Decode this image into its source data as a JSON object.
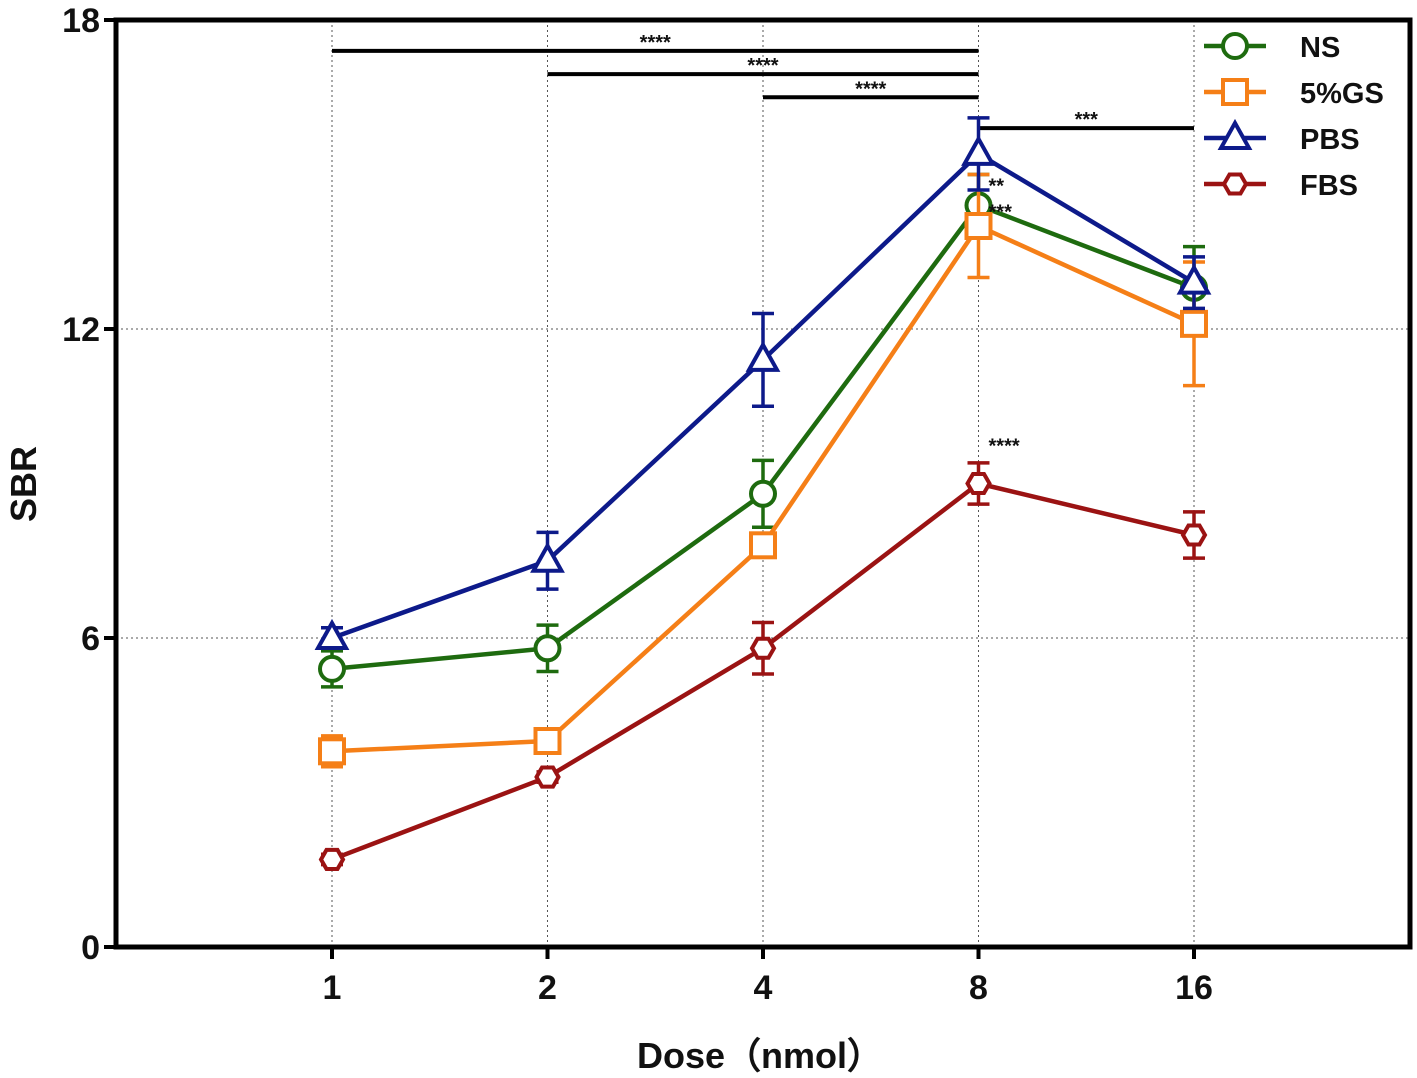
{
  "chart_data": {
    "type": "line",
    "title": "",
    "xlabel": "Dose（nmol）",
    "ylabel": "SBR",
    "categories": [
      "1",
      "2",
      "4",
      "8",
      "16"
    ],
    "yticks": [
      "0",
      "6",
      "12",
      "18"
    ],
    "ylim": [
      0,
      18
    ],
    "grid": true,
    "legend_position": "top-right",
    "series": [
      {
        "name": "NS",
        "marker": "circle",
        "color": "#1e6b0f",
        "values": [
          5.4,
          5.8,
          8.8,
          14.4,
          12.8
        ],
        "errors": [
          0.35,
          0.45,
          0.65,
          0.6,
          0.8
        ]
      },
      {
        "name": "5%GS",
        "marker": "square",
        "color": "#f57f17",
        "values": [
          3.8,
          4.0,
          7.8,
          14.0,
          12.1
        ],
        "errors": [
          0.3,
          0.2,
          0.2,
          1.0,
          1.2
        ]
      },
      {
        "name": "PBS",
        "marker": "triangle",
        "color": "#0d1a8a",
        "values": [
          6.0,
          7.5,
          11.4,
          15.4,
          12.9
        ],
        "errors": [
          0.2,
          0.55,
          0.9,
          0.7,
          0.5
        ]
      },
      {
        "name": "FBS",
        "marker": "hexagon",
        "color": "#9b1313",
        "values": [
          1.7,
          3.3,
          5.8,
          9.0,
          8.0
        ],
        "errors": [
          0.1,
          0.1,
          0.5,
          0.4,
          0.45
        ]
      }
    ],
    "brackets": [
      {
        "from": "1",
        "to": "8",
        "y": 17.4,
        "label": "****"
      },
      {
        "from": "2",
        "to": "8",
        "y": 16.95,
        "label": "****"
      },
      {
        "from": "4",
        "to": "8",
        "y": 16.5,
        "label": "****"
      },
      {
        "from": "8",
        "to": "16",
        "y": 15.9,
        "label": "***"
      }
    ],
    "annotations": [
      {
        "category": "8",
        "y": 14.65,
        "text": "**"
      },
      {
        "category": "8",
        "y": 14.15,
        "text": "***"
      },
      {
        "category": "8",
        "y": 9.6,
        "text": "****"
      }
    ]
  }
}
